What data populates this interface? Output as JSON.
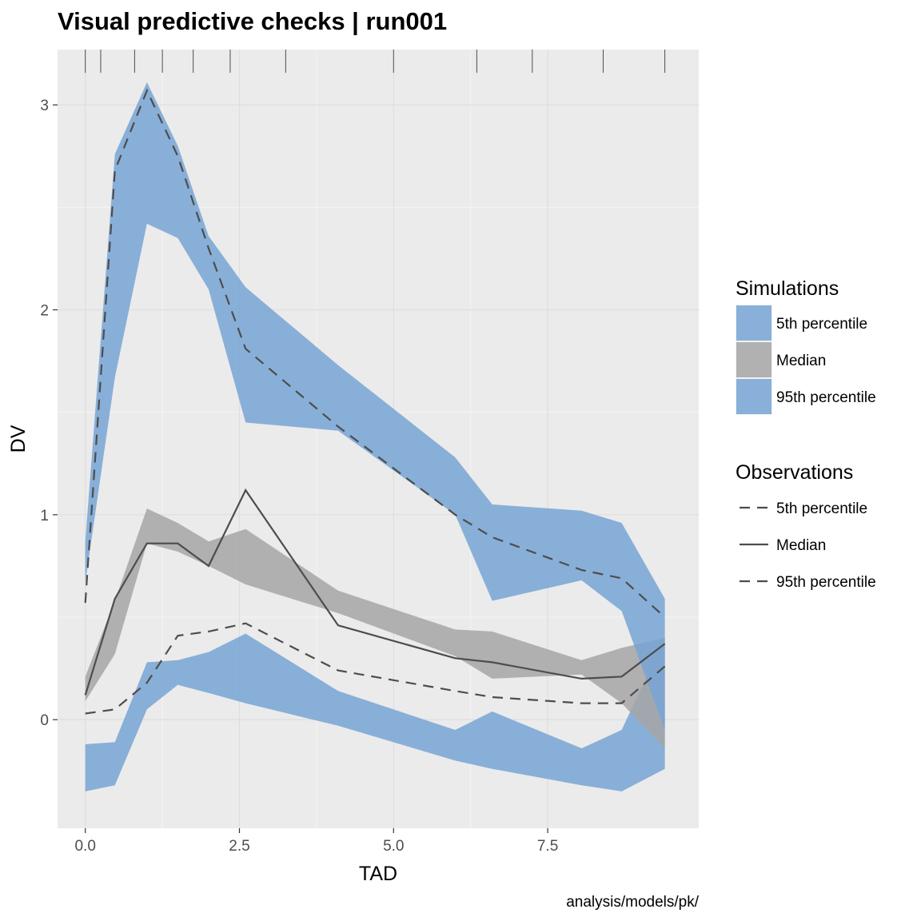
{
  "chart_data": {
    "type": "area",
    "title": "Visual predictive checks | run001",
    "xlabel": "TAD",
    "ylabel": "DV",
    "caption": "analysis/models/pk/",
    "xlim": [
      -0.45,
      9.95
    ],
    "ylim": [
      -0.53,
      3.27
    ],
    "x_ticks": [
      0.0,
      2.5,
      5.0,
      7.5
    ],
    "x_tick_labels": [
      "0.0",
      "2.5",
      "5.0",
      "7.5"
    ],
    "y_ticks": [
      0,
      1,
      2,
      3
    ],
    "y_tick_labels": [
      "0",
      "1",
      "2",
      "3"
    ],
    "grid": true,
    "legend_position": "right",
    "rug_x": [
      0.0,
      0.25,
      0.8,
      1.25,
      1.75,
      2.35,
      3.25,
      5.0,
      6.35,
      7.25,
      8.4,
      9.4
    ],
    "colors": {
      "percentile_band": "#77a4d5",
      "median_band": "#a6a6a6",
      "observed_line": "#4d4d4d",
      "panel": "#ebebeb"
    },
    "x": [
      0.0,
      0.48,
      1.0,
      1.5,
      2.0,
      2.6,
      4.1,
      6.0,
      6.6,
      8.05,
      8.7,
      9.4
    ],
    "simulations": [
      {
        "name": "5th percentile",
        "color": "#77a4d5",
        "lower": [
          -0.35,
          -0.32,
          0.05,
          0.17,
          0.13,
          0.08,
          -0.03,
          -0.2,
          -0.24,
          -0.32,
          -0.35,
          -0.24
        ],
        "upper": [
          -0.12,
          -0.11,
          0.28,
          0.29,
          0.33,
          0.42,
          0.14,
          -0.05,
          0.04,
          -0.14,
          -0.05,
          0.4
        ]
      },
      {
        "name": "Median",
        "color": "#a6a6a6",
        "lower": [
          0.09,
          0.32,
          0.86,
          0.82,
          0.75,
          0.66,
          0.52,
          0.31,
          0.2,
          0.22,
          0.08,
          -0.14
        ],
        "upper": [
          0.21,
          0.58,
          1.03,
          0.96,
          0.87,
          0.93,
          0.63,
          0.44,
          0.43,
          0.29,
          0.35,
          0.4
        ]
      },
      {
        "name": "95th percentile",
        "color": "#77a4d5",
        "lower": [
          0.67,
          1.67,
          2.42,
          2.35,
          2.1,
          1.45,
          1.41,
          1.0,
          0.58,
          0.68,
          0.53,
          -0.05
        ],
        "upper": [
          0.87,
          2.76,
          3.11,
          2.8,
          2.36,
          2.11,
          1.73,
          1.28,
          1.05,
          1.02,
          0.96,
          0.59
        ]
      }
    ],
    "observations": [
      {
        "name": "5th percentile",
        "style": "dashed",
        "values": [
          0.03,
          0.05,
          0.18,
          0.41,
          0.43,
          0.47,
          0.24,
          0.14,
          0.11,
          0.08,
          0.08,
          0.26
        ]
      },
      {
        "name": "Median",
        "style": "solid",
        "values": [
          0.12,
          0.59,
          0.86,
          0.86,
          0.75,
          1.12,
          0.46,
          0.3,
          0.28,
          0.2,
          0.21,
          0.37
        ]
      },
      {
        "name": "95th percentile",
        "style": "dashed",
        "values": [
          0.57,
          2.68,
          3.07,
          2.75,
          2.3,
          1.81,
          1.43,
          1.0,
          0.89,
          0.73,
          0.69,
          0.5
        ]
      }
    ],
    "legend": {
      "simulations_title": "Simulations",
      "simulations_items": [
        "5th percentile",
        "Median",
        "95th percentile"
      ],
      "observations_title": "Observations",
      "observations_items": [
        "5th percentile",
        "Median",
        "95th percentile"
      ]
    }
  }
}
